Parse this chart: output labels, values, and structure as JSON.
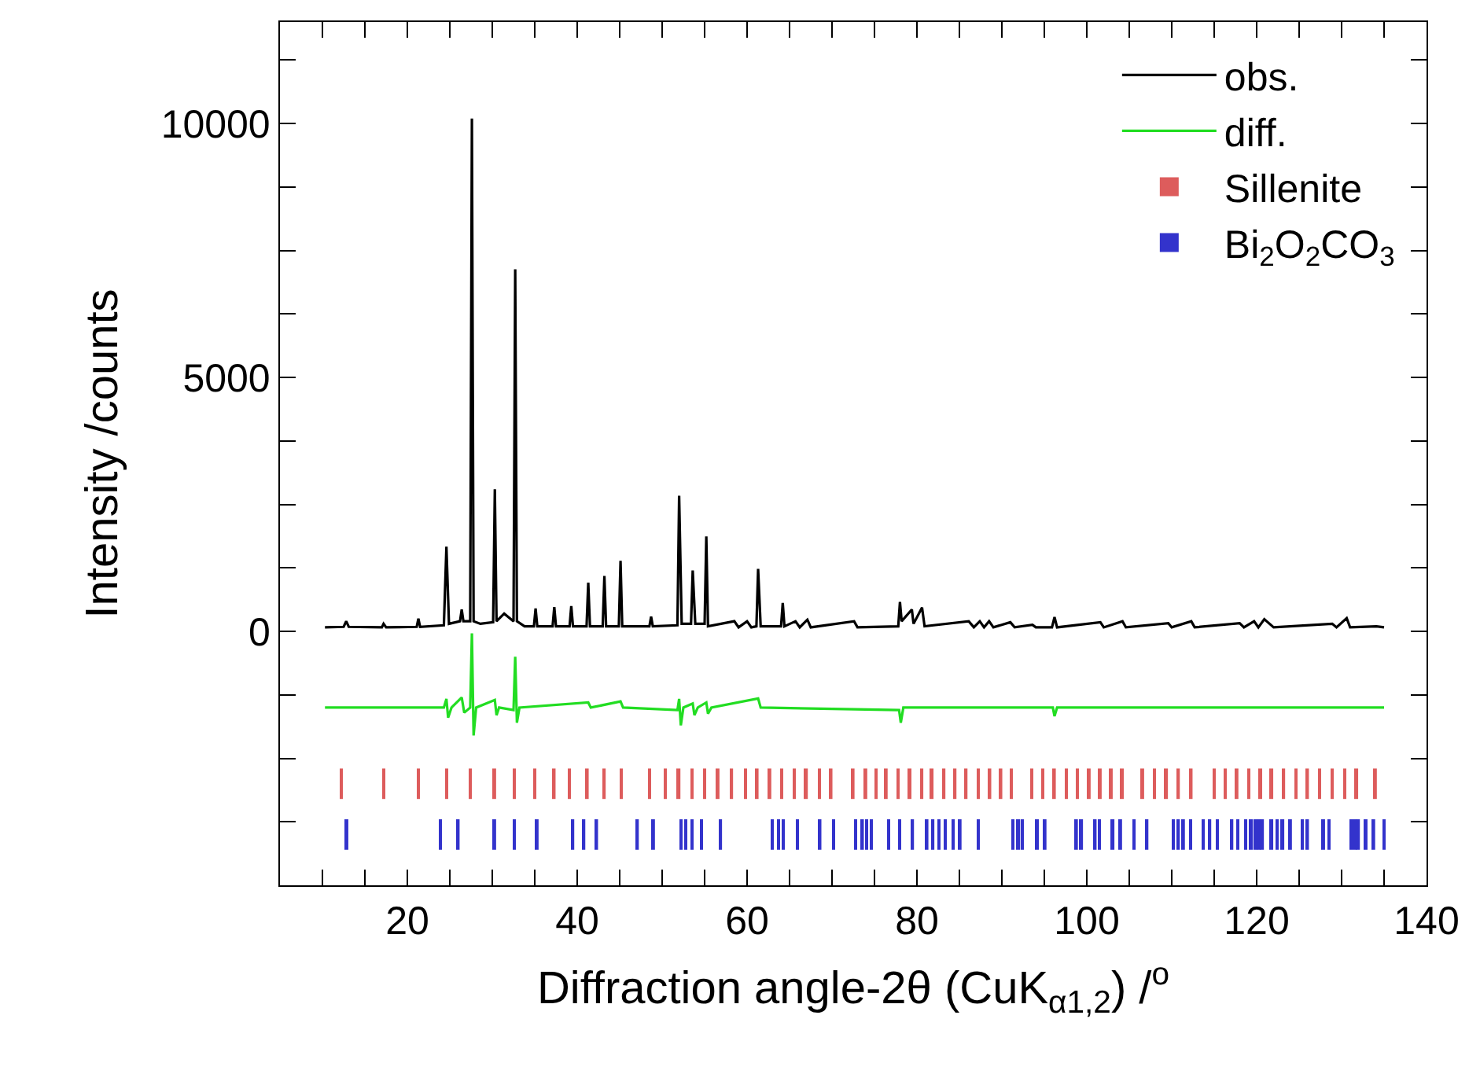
{
  "chart_data": {
    "type": "line",
    "xlabel": "Diffraction angle-2θ (CuK$_{α1,2}$) /$^{o}$",
    "ylabel": "Intensity /counts",
    "xlim": [
      5,
      140
    ],
    "ylim": [
      -5000,
      12000
    ],
    "xticks": [
      {
        "value": 10,
        "label": null
      },
      {
        "value": 15,
        "label": null
      },
      20,
      {
        "value": 25,
        "label": null
      },
      {
        "value": 30,
        "label": null
      },
      {
        "value": 35,
        "label": null
      },
      40,
      {
        "value": 45,
        "label": null
      },
      {
        "value": 50,
        "label": null
      },
      {
        "value": 55,
        "label": null
      },
      60,
      {
        "value": 65,
        "label": null
      },
      {
        "value": 70,
        "label": null
      },
      {
        "value": 75,
        "label": null
      },
      80,
      {
        "value": 85,
        "label": null
      },
      {
        "value": 90,
        "label": null
      },
      {
        "value": 95,
        "label": null
      },
      100,
      {
        "value": 105,
        "label": null
      },
      {
        "value": 110,
        "label": null
      },
      {
        "value": 115,
        "label": null
      },
      120,
      {
        "value": 125,
        "label": null
      },
      {
        "value": 130,
        "label": null
      },
      {
        "value": 135,
        "label": null
      },
      140
    ],
    "yticks": [
      {
        "value": -3750,
        "label": null
      },
      {
        "value": -2500,
        "label": null
      },
      {
        "value": -1250,
        "label": null
      },
      0,
      {
        "value": 1250,
        "label": null
      },
      {
        "value": 2500,
        "label": null
      },
      {
        "value": 3750,
        "label": null
      },
      5000,
      {
        "value": 6250,
        "label": null
      },
      {
        "value": 7500,
        "label": null
      },
      {
        "value": 8750,
        "label": null
      },
      10000,
      {
        "value": 11250,
        "label": null
      }
    ],
    "grid": false,
    "legend": "top right",
    "series": [
      {
        "name": "obs.",
        "color": "#000000",
        "x": [
          10.3,
          12.5,
          12.8,
          13.1,
          17.0,
          17.2,
          17.5,
          21.1,
          21.3,
          21.5,
          24.3,
          24.6,
          24.9,
          26.2,
          26.4,
          26.6,
          27.4,
          27.6,
          27.8,
          28.6,
          30.1,
          30.3,
          30.5,
          31.4,
          32.5,
          32.7,
          32.9,
          33.8,
          34.9,
          35.1,
          35.3,
          37.1,
          37.3,
          37.5,
          39.1,
          39.3,
          39.5,
          41.1,
          41.3,
          41.5,
          43.0,
          43.2,
          43.4,
          44.9,
          45.1,
          45.3,
          48.5,
          48.7,
          48.9,
          51.8,
          52.0,
          52.3,
          53.4,
          53.6,
          53.9,
          55.0,
          55.2,
          55.4,
          58.5,
          59.0,
          60.0,
          60.5,
          61.1,
          61.3,
          61.6,
          64.0,
          64.2,
          64.4,
          65.7,
          66.2,
          67.1,
          67.5,
          72.6,
          73.0,
          77.8,
          78.0,
          78.2,
          79.4,
          79.6,
          80.6,
          80.9,
          86.1,
          86.7,
          87.4,
          87.9,
          88.5,
          89.0,
          91.0,
          91.5,
          93.6,
          94.0,
          95.9,
          96.2,
          96.5,
          101.6,
          102.0,
          104.2,
          104.6,
          109.6,
          110.0,
          112.3,
          112.7,
          118.0,
          118.5,
          119.7,
          120.2,
          120.9,
          122.0,
          128.9,
          129.4,
          130.6,
          131.0,
          134.1,
          135.0
        ],
        "values": [
          80,
          90,
          200,
          90,
          80,
          150,
          80,
          90,
          250,
          90,
          120,
          1670,
          150,
          200,
          430,
          200,
          200,
          10100,
          200,
          150,
          180,
          2800,
          200,
          350,
          200,
          7130,
          200,
          100,
          100,
          450,
          100,
          100,
          480,
          100,
          100,
          500,
          100,
          100,
          960,
          100,
          100,
          1090,
          100,
          100,
          1390,
          100,
          100,
          290,
          100,
          120,
          2670,
          150,
          150,
          1200,
          150,
          150,
          1870,
          100,
          200,
          80,
          200,
          80,
          100,
          1230,
          100,
          100,
          560,
          100,
          200,
          80,
          230,
          80,
          200,
          80,
          100,
          580,
          200,
          430,
          150,
          470,
          100,
          200,
          80,
          200,
          80,
          200,
          80,
          180,
          80,
          130,
          80,
          80,
          280,
          80,
          180,
          80,
          200,
          80,
          160,
          80,
          200,
          80,
          160,
          80,
          200,
          80,
          240,
          80,
          150,
          80,
          260,
          80,
          100,
          80
        ]
      },
      {
        "name": "diff.",
        "color": "#22dd22",
        "x": [
          10.3,
          24.3,
          24.6,
          24.8,
          25.2,
          26.4,
          26.7,
          27.4,
          27.6,
          27.8,
          28.1,
          30.3,
          30.5,
          30.8,
          32.5,
          32.7,
          32.9,
          33.2,
          41.3,
          41.6,
          45.1,
          45.4,
          51.8,
          52.0,
          52.2,
          52.5,
          53.6,
          53.8,
          54.2,
          55.2,
          55.4,
          55.8,
          61.3,
          61.6,
          77.9,
          78.1,
          78.4,
          96.0,
          96.2,
          96.5,
          135.0
        ],
        "values": [
          -1500,
          -1500,
          -1330,
          -1700,
          -1500,
          -1300,
          -1600,
          -1500,
          -40,
          -2050,
          -1500,
          -1350,
          -1650,
          -1500,
          -1550,
          -500,
          -1800,
          -1500,
          -1400,
          -1500,
          -1380,
          -1500,
          -1550,
          -1330,
          -1850,
          -1500,
          -1420,
          -1650,
          -1500,
          -1400,
          -1620,
          -1500,
          -1320,
          -1500,
          -1550,
          -1800,
          -1500,
          -1500,
          -1670,
          -1500,
          -1500
        ]
      },
      {
        "name": "Sillenite",
        "type": "bar",
        "color": "#dd5c5c",
        "base": [
          -3300,
          -3300,
          -3300,
          -3300,
          -3300,
          -3300,
          -3300,
          -3300,
          -3300,
          -3300,
          -3300,
          -3300,
          -3300,
          -3300,
          -3300,
          -3300,
          -3300,
          -3300,
          -3300,
          -3300,
          -3300,
          -3300,
          -3300,
          -3300,
          -3300,
          -3300,
          -3300,
          -3300,
          -3300,
          -3300,
          -3300,
          -3300,
          -3300,
          -3300,
          -3300,
          -3300,
          -3300,
          -3300,
          -3300,
          -3300,
          -3300,
          -3300,
          -3300,
          -3300,
          -3300,
          -3300,
          -3300,
          -3300,
          -3300,
          -3300,
          -3300,
          -3300,
          -3300,
          -3300,
          -3300,
          -3300,
          -3300,
          -3300,
          -3300,
          -3300,
          -3300,
          -3300,
          -3300,
          -3300,
          -3300,
          -3300,
          -3300,
          -3300,
          -3300,
          -3300,
          -3300
        ],
        "x": [
          12.2,
          17.2,
          21.3,
          24.6,
          27.4,
          30.3,
          32.6,
          35.0,
          37.3,
          39.1,
          41.2,
          43.2,
          45.2,
          48.5,
          50.4,
          52.0,
          53.5,
          55.0,
          56.6,
          58.2,
          59.8,
          61.2,
          62.7,
          64.1,
          65.6,
          67.0,
          68.5,
          69.9,
          72.5,
          74.0,
          75.2,
          76.4,
          77.8,
          79.2,
          80.6,
          81.8,
          83.2,
          84.5,
          85.8,
          87.2,
          88.6,
          89.9,
          91.1,
          93.5,
          94.8,
          96.2,
          97.6,
          98.9,
          100.3,
          101.6,
          102.9,
          104.2,
          106.6,
          108.0,
          109.4,
          110.8,
          112.3,
          115.0,
          116.3,
          117.7,
          119.1,
          120.5,
          121.8,
          123.2,
          124.6,
          126.0,
          127.4,
          128.9,
          130.4,
          131.8,
          134.0
        ],
        "values": [
          600,
          600,
          600,
          600,
          600,
          600,
          600,
          600,
          600,
          600,
          600,
          600,
          600,
          600,
          600,
          600,
          600,
          600,
          600,
          600,
          600,
          600,
          600,
          600,
          600,
          600,
          600,
          600,
          600,
          600,
          600,
          600,
          600,
          600,
          600,
          600,
          600,
          600,
          600,
          600,
          600,
          600,
          600,
          600,
          600,
          600,
          600,
          600,
          600,
          600,
          600,
          600,
          600,
          600,
          600,
          600,
          600,
          600,
          600,
          600,
          600,
          600,
          600,
          600,
          600,
          600,
          600,
          600,
          600,
          600,
          600
        ]
      },
      {
        "name": "Bi$_{2}$O$_{2}$CO$_{3}$",
        "type": "bar",
        "color": "#3333cc",
        "base": [
          -4300,
          -4300,
          -4300,
          -4300,
          -4300,
          -4300,
          -4300,
          -4300,
          -4300,
          -4300,
          -4300,
          -4300,
          -4300,
          -4300,
          -4300,
          -4300,
          -4300,
          -4300,
          -4300,
          -4300,
          -4300,
          -4300,
          -4300,
          -4300,
          -4300,
          -4300,
          -4300,
          -4300,
          -4300,
          -4300,
          -4300,
          -4300,
          -4300,
          -4300,
          -4300,
          -4300,
          -4300,
          -4300,
          -4300,
          -4300,
          -4300,
          -4300,
          -4300,
          -4300,
          -4300,
          -4300,
          -4300,
          -4300,
          -4300,
          -4300,
          -4300,
          -4300,
          -4300,
          -4300,
          -4300,
          -4300,
          -4300,
          -4300,
          -4300,
          -4300,
          -4300,
          -4300,
          -4300,
          -4300,
          -4300,
          -4300,
          -4300,
          -4300,
          -4300,
          -4300,
          -4300,
          -4300,
          -4300,
          -4300,
          -4300,
          -4300,
          -4300
        ],
        "x": [
          12.9,
          23.9,
          26.0,
          30.3,
          32.6,
          35.3,
          39.5,
          40.8,
          42.3,
          47.1,
          49.0,
          52.2,
          52.8,
          53.5,
          54.6,
          56.9,
          63.0,
          63.7,
          64.3,
          65.9,
          68.6,
          70.2,
          72.8,
          73.6,
          74.1,
          74.6,
          76.7,
          78.0,
          79.5,
          81.2,
          81.9,
          82.6,
          83.3,
          84.3,
          85.1,
          87.2,
          91.3,
          92.0,
          92.4,
          94.2,
          95.1,
          98.8,
          99.4,
          101.0,
          101.5,
          103.1,
          104.0,
          105.6,
          107.1,
          110.2,
          110.8,
          111.4,
          112.2,
          113.7,
          114.5,
          115.4,
          117.1,
          117.8,
          118.7,
          119.4,
          119.9,
          120.3,
          120.7,
          121.8,
          122.4,
          123.1,
          124.0,
          125.4,
          126.0,
          127.9,
          128.5,
          131.1,
          131.6,
          132.0,
          132.9,
          133.8,
          135.0
        ],
        "values": [
          600,
          600,
          600,
          600,
          600,
          600,
          600,
          600,
          600,
          600,
          600,
          600,
          600,
          600,
          600,
          600,
          600,
          600,
          600,
          600,
          600,
          600,
          600,
          600,
          600,
          600,
          600,
          600,
          600,
          600,
          600,
          600,
          600,
          600,
          600,
          600,
          600,
          600,
          600,
          600,
          600,
          600,
          600,
          600,
          600,
          600,
          600,
          600,
          600,
          600,
          600,
          600,
          600,
          600,
          600,
          600,
          600,
          600,
          600,
          600,
          600,
          600,
          600,
          600,
          600,
          600,
          600,
          600,
          600,
          600,
          600,
          600,
          600,
          600,
          600,
          600,
          600
        ]
      }
    ]
  }
}
